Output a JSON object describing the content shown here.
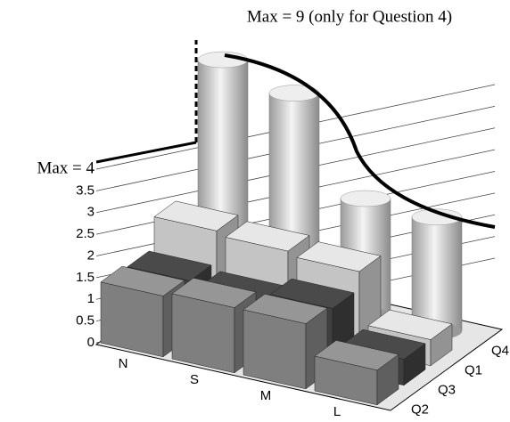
{
  "chart_data": {
    "type": "bar3d",
    "annotations": [
      "Max = 9 (only for Question 4)"
    ],
    "categories": [
      "N",
      "S",
      "M",
      "L"
    ],
    "series": [
      {
        "name": "Q2",
        "color": "#7f7f7f",
        "values": [
          1.4,
          1.5,
          1.5,
          0.8
        ]
      },
      {
        "name": "Q3",
        "color": "#3f3f3f",
        "values": [
          1.3,
          1.2,
          1.4,
          0.6
        ]
      },
      {
        "name": "Q1",
        "color": "#c4c4c4",
        "values": [
          2.0,
          1.9,
          1.8,
          0.6
        ]
      },
      {
        "name": "Q4",
        "color": "#d8d8d8",
        "axis": "y2",
        "values": [
          9,
          8.3,
          4.7,
          4.6
        ]
      }
    ],
    "ylim": [
      0,
      4
    ],
    "yticks": [
      0,
      0.5,
      1,
      1.5,
      2,
      2.5,
      3,
      3.5,
      {
        "value": 4,
        "label": "Max = 4"
      }
    ],
    "y2lim": [
      0,
      9
    ],
    "grid": true
  }
}
